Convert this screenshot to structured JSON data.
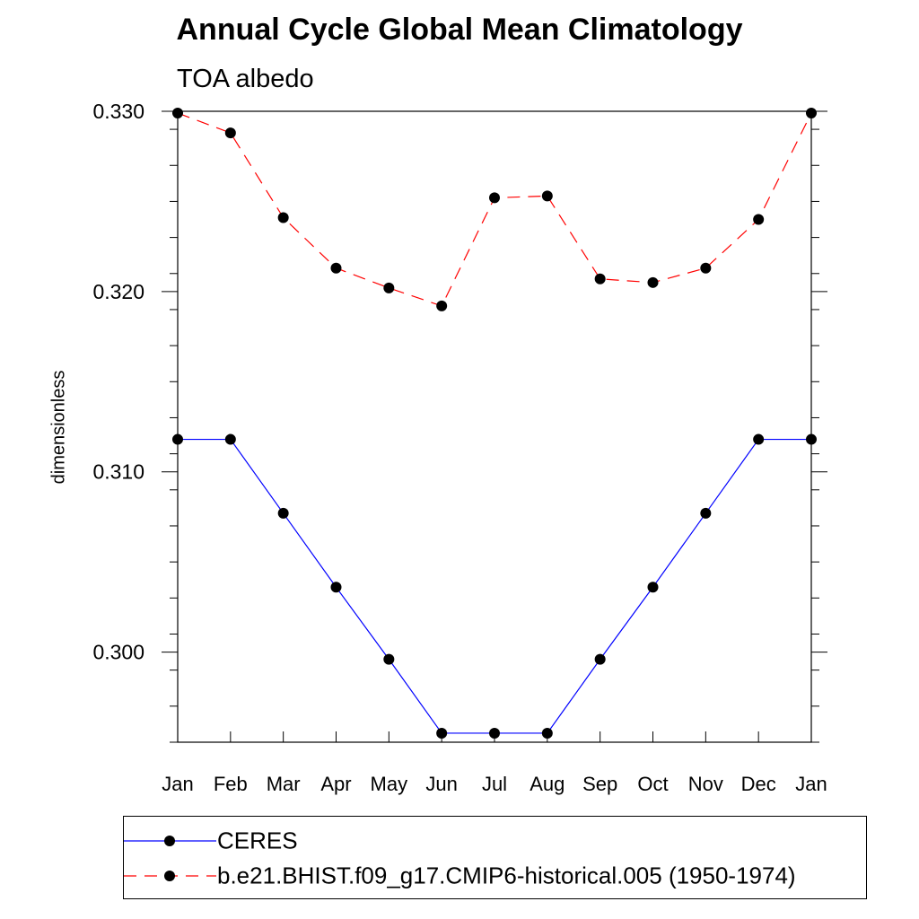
{
  "chart_data": {
    "type": "line",
    "title": "Annual Cycle Global Mean Climatology",
    "subtitle": "TOA albedo",
    "xlabel": "",
    "ylabel": "dimensionless",
    "categories": [
      "Jan",
      "Feb",
      "Mar",
      "Apr",
      "May",
      "Jun",
      "Jul",
      "Aug",
      "Sep",
      "Oct",
      "Nov",
      "Dec",
      "Jan"
    ],
    "ylim": [
      0.295,
      0.33
    ],
    "yticks": [
      0.3,
      0.31,
      0.32,
      0.33
    ],
    "ytick_labels": [
      "0.300",
      "0.310",
      "0.320",
      "0.330"
    ],
    "series": [
      {
        "name": "CERES",
        "color": "#0000ff",
        "line_style": "solid",
        "marker": "filled-circle",
        "values": [
          0.3118,
          0.3118,
          0.3077,
          0.3036,
          0.2996,
          0.2955,
          0.2955,
          0.2955,
          0.2996,
          0.3036,
          0.3077,
          0.3118,
          0.3118
        ]
      },
      {
        "name": "b.e21.BHIST.f09_g17.CMIP6-historical.005 (1950-1974)",
        "color": "#ff0000",
        "line_style": "dashed",
        "marker": "filled-circle",
        "values": [
          0.3299,
          0.3288,
          0.3241,
          0.3213,
          0.3202,
          0.3192,
          0.3252,
          0.3253,
          0.3207,
          0.3205,
          0.3213,
          0.324,
          0.3299
        ]
      }
    ],
    "legend_position": "bottom"
  }
}
